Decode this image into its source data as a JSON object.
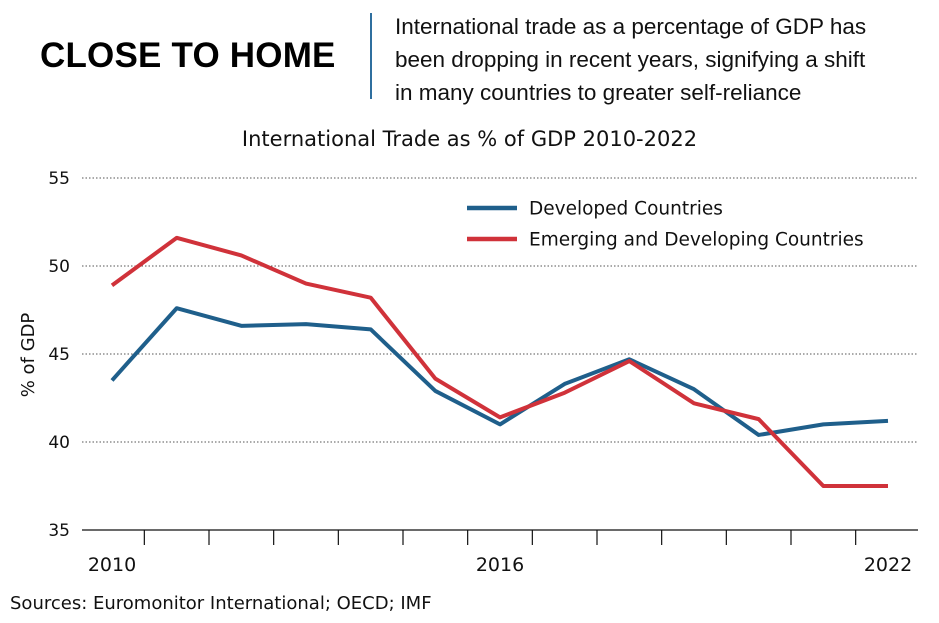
{
  "header": {
    "headline": "CLOSE TO HOME",
    "dek_lines": [
      "International trade as a percentage of GDP has",
      "been dropping in recent years, signifying a shift",
      "in many countries to greater self-reliance"
    ]
  },
  "footer": {
    "source": "Sources: Euromonitor International; OECD; IMF"
  },
  "chart_data": {
    "type": "line",
    "title": "International Trade as % of GDP 2010-2022",
    "xlabel": "",
    "ylabel": "% of GDP",
    "x": [
      2010,
      2011,
      2012,
      2013,
      2014,
      2015,
      2016,
      2017,
      2018,
      2019,
      2020,
      2021,
      2022
    ],
    "x_tick_labels": [
      {
        "x": 2010,
        "label": "2010"
      },
      {
        "x": 2016,
        "label": "2016"
      },
      {
        "x": 2022,
        "label": "2022"
      }
    ],
    "ylim": [
      35,
      55
    ],
    "yticks": [
      35,
      40,
      45,
      50,
      55
    ],
    "grid": "horizontal dotted",
    "legend_position": "top-right",
    "series": [
      {
        "name": "Developed Countries",
        "color": "#1f5f8b",
        "values": [
          43.5,
          47.6,
          46.6,
          46.7,
          46.4,
          42.9,
          41.0,
          43.3,
          44.7,
          43.0,
          40.4,
          41.0,
          41.2
        ]
      },
      {
        "name": "Emerging and Developing Countries",
        "color": "#d0323a",
        "values": [
          48.9,
          51.6,
          50.6,
          49.0,
          48.2,
          43.6,
          41.4,
          42.8,
          44.6,
          42.2,
          41.3,
          37.5,
          37.5
        ]
      }
    ]
  }
}
